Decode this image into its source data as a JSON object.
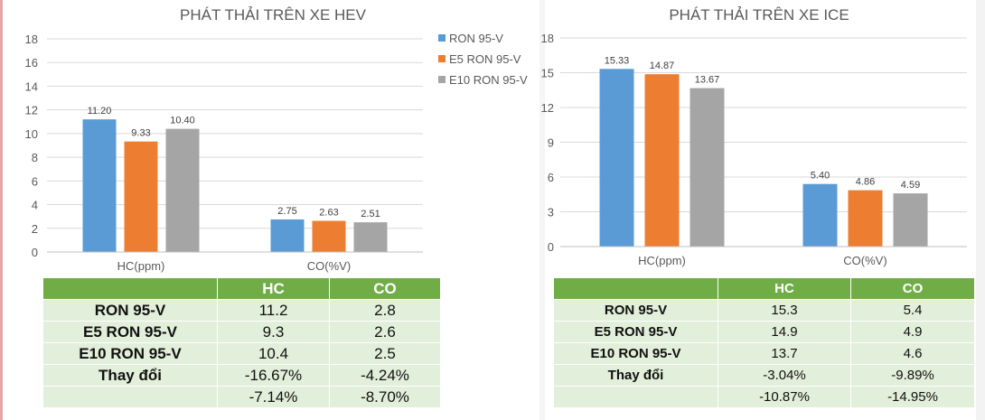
{
  "colors": {
    "ron": "#5b9bd5",
    "e5": "#ed7d31",
    "e10": "#a5a5a5",
    "header": "#70ad47",
    "body": "#e2efda"
  },
  "legend": [
    "RON 95-V",
    "E5 RON 95-V",
    "E10 RON 95-V"
  ],
  "chart_data": [
    {
      "type": "bar",
      "title": "PHÁT THẢI TRÊN XE HEV",
      "categories": [
        "HC(ppm)",
        "CO(%V)"
      ],
      "series": [
        {
          "name": "RON 95-V",
          "values": [
            11.2,
            2.75
          ],
          "labels": [
            "11.20",
            "2.75"
          ]
        },
        {
          "name": "E5 RON 95-V",
          "values": [
            9.33,
            2.63
          ],
          "labels": [
            "9.33",
            "2.63"
          ]
        },
        {
          "name": "E10 RON 95-V",
          "values": [
            10.4,
            2.51
          ],
          "labels": [
            "10.40",
            "2.51"
          ]
        }
      ],
      "ylim": [
        0,
        18
      ],
      "yticks": [
        "0",
        "2",
        "4",
        "6",
        "8",
        "10",
        "12",
        "14",
        "16",
        "18"
      ],
      "grid": true,
      "legend_position": "right"
    },
    {
      "type": "bar",
      "title": "PHÁT THẢI TRÊN XE ICE",
      "categories": [
        "HC(ppm)",
        "CO(%V)"
      ],
      "series": [
        {
          "name": "RON 95-V",
          "values": [
            15.33,
            5.4
          ],
          "labels": [
            "15.33",
            "5.40"
          ]
        },
        {
          "name": "E5 RON 95-V",
          "values": [
            14.87,
            4.86
          ],
          "labels": [
            "14.87",
            "4.86"
          ]
        },
        {
          "name": "E10 RON 95-V",
          "values": [
            13.67,
            4.59
          ],
          "labels": [
            "13.67",
            "4.59"
          ]
        }
      ],
      "ylim": [
        0,
        18
      ],
      "yticks": [
        "0",
        "3",
        "6",
        "9",
        "12",
        "15",
        "18"
      ],
      "grid": true
    }
  ],
  "tables": [
    {
      "headers": [
        "",
        "HC",
        "CO"
      ],
      "rows": [
        [
          "RON 95-V",
          "11.2",
          "2.8"
        ],
        [
          "E5 RON 95-V",
          "9.3",
          "2.6"
        ],
        [
          "E10 RON 95-V",
          "10.4",
          "2.5"
        ],
        [
          "Thay đổi",
          "-16.67%",
          "-4.24%"
        ],
        [
          "",
          "-7.14%",
          "-8.70%"
        ]
      ]
    },
    {
      "headers": [
        "",
        "HC",
        "CO"
      ],
      "rows": [
        [
          "RON 95-V",
          "15.3",
          "5.4"
        ],
        [
          "E5 RON 95-V",
          "14.9",
          "4.9"
        ],
        [
          "E10 RON 95-V",
          "13.7",
          "4.6"
        ],
        [
          "Thay đổi",
          "-3.04%",
          "-9.89%"
        ],
        [
          "",
          "-10.87%",
          "-14.95%"
        ]
      ]
    }
  ]
}
